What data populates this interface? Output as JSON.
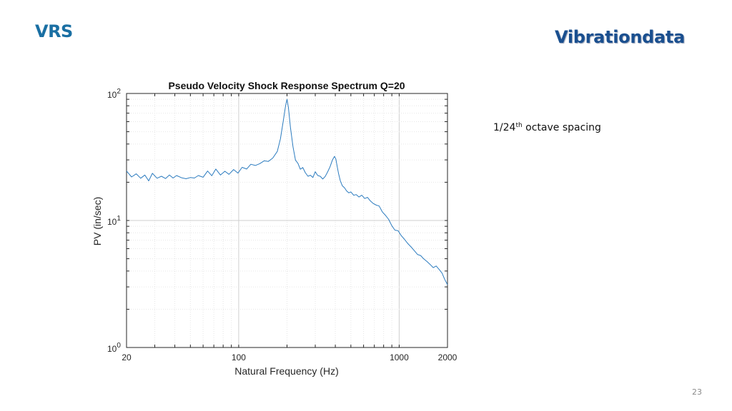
{
  "slide": {
    "title": "VRS",
    "brand": "Vibrationdata",
    "note_prefix": "1/24",
    "note_sup": "th",
    "note_suffix": " octave spacing",
    "page_number": "23"
  },
  "colors": {
    "title": "#1a6fa3",
    "brand": "#1a4f8f",
    "series": "#2b7bbf",
    "grid": "#d9d9d9",
    "axis": "#262626"
  },
  "chart_data": {
    "type": "line",
    "title": "Pseudo Velocity Shock Response Spectrum Q=20",
    "xlabel": "Natural Frequency (Hz)",
    "ylabel": "PV (in/sec)",
    "xscale": "log",
    "yscale": "log",
    "xlim": [
      20,
      2000
    ],
    "ylim": [
      1,
      100
    ],
    "grid": true,
    "xticks": [
      {
        "value": 20,
        "label": "20"
      },
      {
        "value": 100,
        "label": "100"
      },
      {
        "value": 1000,
        "label": "1000"
      },
      {
        "value": 2000,
        "label": "2000"
      }
    ],
    "yticks": [
      {
        "value": 1,
        "base": "10",
        "exp": "0"
      },
      {
        "value": 10,
        "base": "10",
        "exp": "1"
      },
      {
        "value": 100,
        "base": "10",
        "exp": "2"
      }
    ],
    "series": [
      {
        "x": [
          20,
          21.5,
          23,
          24.5,
          26,
          27.5,
          29,
          31,
          33,
          35,
          37,
          39,
          41,
          44,
          47,
          50,
          53,
          56,
          60,
          64,
          68,
          72,
          77,
          82,
          87,
          93,
          99,
          105,
          112,
          119,
          127,
          135,
          144,
          153,
          163,
          174,
          182,
          190,
          196,
          200,
          204,
          210,
          218,
          226,
          234,
          242,
          251,
          260,
          270,
          280,
          290,
          300,
          311,
          322,
          334,
          346,
          358,
          371,
          384,
          395,
          403,
          410,
          419,
          430,
          442,
          456,
          470,
          485,
          500,
          520,
          540,
          562,
          585,
          610,
          635,
          660,
          690,
          720,
          750,
          785,
          820,
          860,
          900,
          940,
          985,
          1030,
          1080,
          1130,
          1185,
          1240,
          1300,
          1360,
          1420,
          1490,
          1560,
          1630,
          1700,
          1780,
          1850,
          1920,
          2000
        ],
        "y": [
          24.5,
          22.0,
          23.3,
          21.5,
          22.8,
          20.5,
          23.5,
          21.5,
          22.3,
          21.4,
          22.8,
          21.6,
          22.6,
          21.7,
          21.3,
          21.8,
          21.6,
          22.6,
          21.9,
          24.5,
          22.5,
          25.4,
          22.8,
          24.4,
          23.1,
          25.2,
          23.6,
          26.2,
          25.4,
          27.7,
          27.1,
          28.0,
          29.5,
          29.2,
          31.0,
          35.0,
          44.0,
          62.0,
          80.0,
          90.0,
          78.0,
          54.0,
          38.0,
          29.8,
          28.2,
          25.3,
          26.1,
          23.8,
          22.3,
          22.7,
          21.8,
          24.2,
          22.6,
          22.3,
          21.2,
          22.2,
          24.1,
          26.5,
          30.0,
          32.0,
          30.5,
          27.0,
          23.4,
          20.5,
          18.8,
          18.1,
          17.1,
          16.5,
          16.8,
          15.8,
          16.0,
          15.3,
          15.8,
          14.9,
          15.2,
          14.3,
          13.6,
          13.2,
          13.0,
          11.7,
          11.0,
          10.2,
          9.1,
          8.4,
          8.3,
          7.6,
          7.1,
          6.6,
          6.2,
          5.8,
          5.4,
          5.3,
          5.0,
          4.75,
          4.5,
          4.25,
          4.38,
          4.1,
          3.85,
          3.45,
          3.12
        ]
      }
    ]
  }
}
